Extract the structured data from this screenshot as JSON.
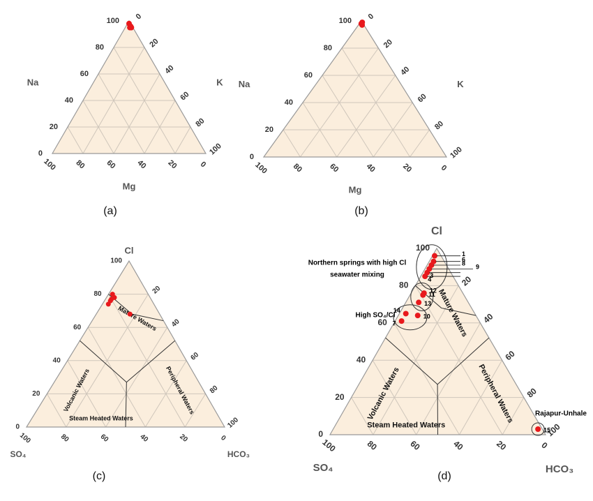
{
  "colors": {
    "fill": "#fbeedd",
    "grid": "#cfc6bb",
    "edge": "#999999",
    "point": "#e8191c"
  },
  "chart_data": [
    {
      "id": "a",
      "type": "ternary",
      "caption": "(a)",
      "labels": {
        "top": "",
        "left": "Na",
        "right": "K",
        "bottom": "Mg"
      },
      "ticks": {
        "left": [
          "0",
          "20",
          "40",
          "60",
          "80",
          "100"
        ],
        "right": [
          "0",
          "20",
          "40",
          "60",
          "80",
          "100"
        ],
        "bottom": [
          "100",
          "80",
          "60",
          "40",
          "20",
          "0"
        ]
      },
      "points": [
        {
          "Na": 98,
          "K": 1,
          "Mg": 1
        },
        {
          "Na": 95,
          "K": 3,
          "Mg": 2
        },
        {
          "Na": 95,
          "K": 4,
          "Mg": 1
        },
        {
          "Na": 96,
          "K": 3,
          "Mg": 1
        }
      ]
    },
    {
      "id": "b",
      "type": "ternary",
      "caption": "(b)",
      "labels": {
        "top": "",
        "left": "Na",
        "right": "K",
        "bottom": "Mg"
      },
      "ticks": {
        "left": [
          "0",
          "20",
          "40",
          "60",
          "80",
          "100"
        ],
        "right": [
          "0",
          "20",
          "40",
          "60",
          "80",
          "100"
        ],
        "bottom": [
          "100",
          "80",
          "60",
          "40",
          "20",
          "0"
        ]
      },
      "points": [
        {
          "Na": 99,
          "K": 1,
          "Mg": 0
        },
        {
          "Na": 98,
          "K": 1,
          "Mg": 1
        },
        {
          "Na": 97,
          "K": 2,
          "Mg": 1
        }
      ]
    },
    {
      "id": "c",
      "type": "ternary",
      "caption": "(c)",
      "labels": {
        "top": "Cl",
        "left": "SO₄",
        "right": "HCO₃",
        "bottom": ""
      },
      "ticks": {
        "left": [
          "0",
          "20",
          "40",
          "60",
          "80",
          "100"
        ],
        "right": [
          "20",
          "40",
          "60",
          "80",
          "100"
        ],
        "bottom": [
          "100",
          "80",
          "60",
          "40",
          "20",
          "0"
        ]
      },
      "zones": [
        "Mature Waters",
        "Volcanic Waters",
        "Peripheral Waters",
        "Steam Heated Waters"
      ],
      "points": [
        {
          "Cl": 80,
          "SO4": 18,
          "HCO3": 2
        },
        {
          "Cl": 78,
          "SO4": 18,
          "HCO3": 4
        },
        {
          "Cl": 77,
          "SO4": 20,
          "HCO3": 3
        },
        {
          "Cl": 76,
          "SO4": 21,
          "HCO3": 3
        },
        {
          "Cl": 74,
          "SO4": 23,
          "HCO3": 3
        },
        {
          "Cl": 68,
          "SO4": 15,
          "HCO3": 17
        }
      ]
    },
    {
      "id": "d",
      "type": "ternary",
      "caption": "(d)",
      "labels": {
        "top": "Cl",
        "left": "SO₄",
        "right": "HCO₃",
        "bottom": ""
      },
      "ticks": {
        "left": [
          "0",
          "20",
          "40",
          "60",
          "80",
          "100"
        ],
        "right": [
          "20",
          "40",
          "60",
          "80",
          "100"
        ],
        "bottom": [
          "100",
          "80",
          "60",
          "40",
          "20",
          "0"
        ]
      },
      "zones": [
        "Mature Waters",
        "Volcanic Waters",
        "Peripheral Waters",
        "Steam Heated Waters"
      ],
      "annotations": [
        "Northern springs with high Cl",
        "seawater mixing",
        "High SO₄/Cl",
        "Rajapur-Unhale"
      ],
      "point_labels": [
        "1",
        "6",
        "8",
        "9",
        "3",
        "4",
        "12",
        "11",
        "13",
        "14",
        "10",
        "7",
        "15"
      ],
      "points": [
        {
          "label": "1",
          "Cl": 96,
          "SO4": 3,
          "HCO3": 1
        },
        {
          "label": "6",
          "Cl": 93,
          "SO4": 5,
          "HCO3": 2
        },
        {
          "label": "8",
          "Cl": 91,
          "SO4": 7,
          "HCO3": 2
        },
        {
          "label": "9",
          "Cl": 89,
          "SO4": 9,
          "HCO3": 2
        },
        {
          "label": "3",
          "Cl": 87,
          "SO4": 11,
          "HCO3": 2
        },
        {
          "label": "4",
          "Cl": 85,
          "SO4": 13,
          "HCO3": 2
        },
        {
          "label": "12",
          "Cl": 76,
          "SO4": 18,
          "HCO3": 6
        },
        {
          "label": "11",
          "Cl": 75,
          "SO4": 19,
          "HCO3": 6
        },
        {
          "label": "13",
          "Cl": 71,
          "SO4": 23,
          "HCO3": 6
        },
        {
          "label": "14",
          "Cl": 65,
          "SO4": 32,
          "HCO3": 3
        },
        {
          "label": "10",
          "Cl": 64,
          "SO4": 27,
          "HCO3": 9
        },
        {
          "label": "7",
          "Cl": 61,
          "SO4": 36,
          "HCO3": 3
        },
        {
          "label": "15",
          "Cl": 3,
          "SO4": 2,
          "HCO3": 95
        }
      ]
    }
  ]
}
